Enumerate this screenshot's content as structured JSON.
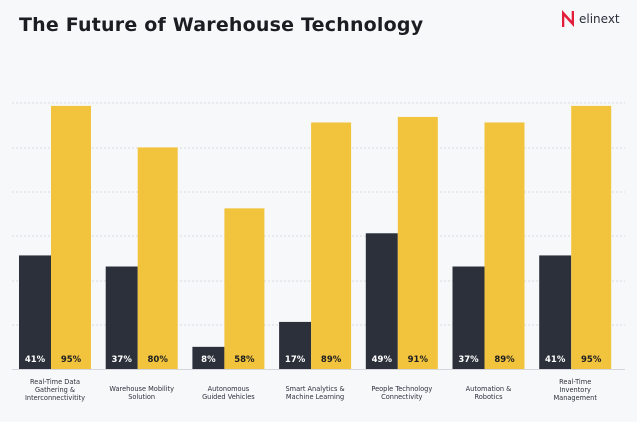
{
  "brand": {
    "name": "elinext",
    "accent": "#e31e3b"
  },
  "chart_data": {
    "type": "bar",
    "title": "The Future of Warehouse Technology",
    "xlabel": "",
    "ylabel": "",
    "ylim": [
      0,
      100
    ],
    "grid": true,
    "legend": "none",
    "categories": [
      [
        "Real-Time Data",
        "Gathering &",
        "Interconnectivitity"
      ],
      [
        "Warehouse Mobility",
        "Solution"
      ],
      [
        "Autonomous",
        "Guided Vehicles"
      ],
      [
        "Smart Analytics &",
        "Machine Learning"
      ],
      [
        "People Technology",
        "Connectivity"
      ],
      [
        "Automation &",
        "Robotics"
      ],
      [
        "Real-Time",
        "Inventory",
        "Management"
      ]
    ],
    "series": [
      {
        "color": "#2b303b",
        "label_color": "#ffffff",
        "values": [
          41,
          37,
          8,
          17,
          49,
          37,
          41
        ]
      },
      {
        "color": "#f2c43d",
        "label_color": "#1c1d22",
        "values": [
          95,
          80,
          58,
          89,
          91,
          89,
          95
        ]
      }
    ]
  }
}
